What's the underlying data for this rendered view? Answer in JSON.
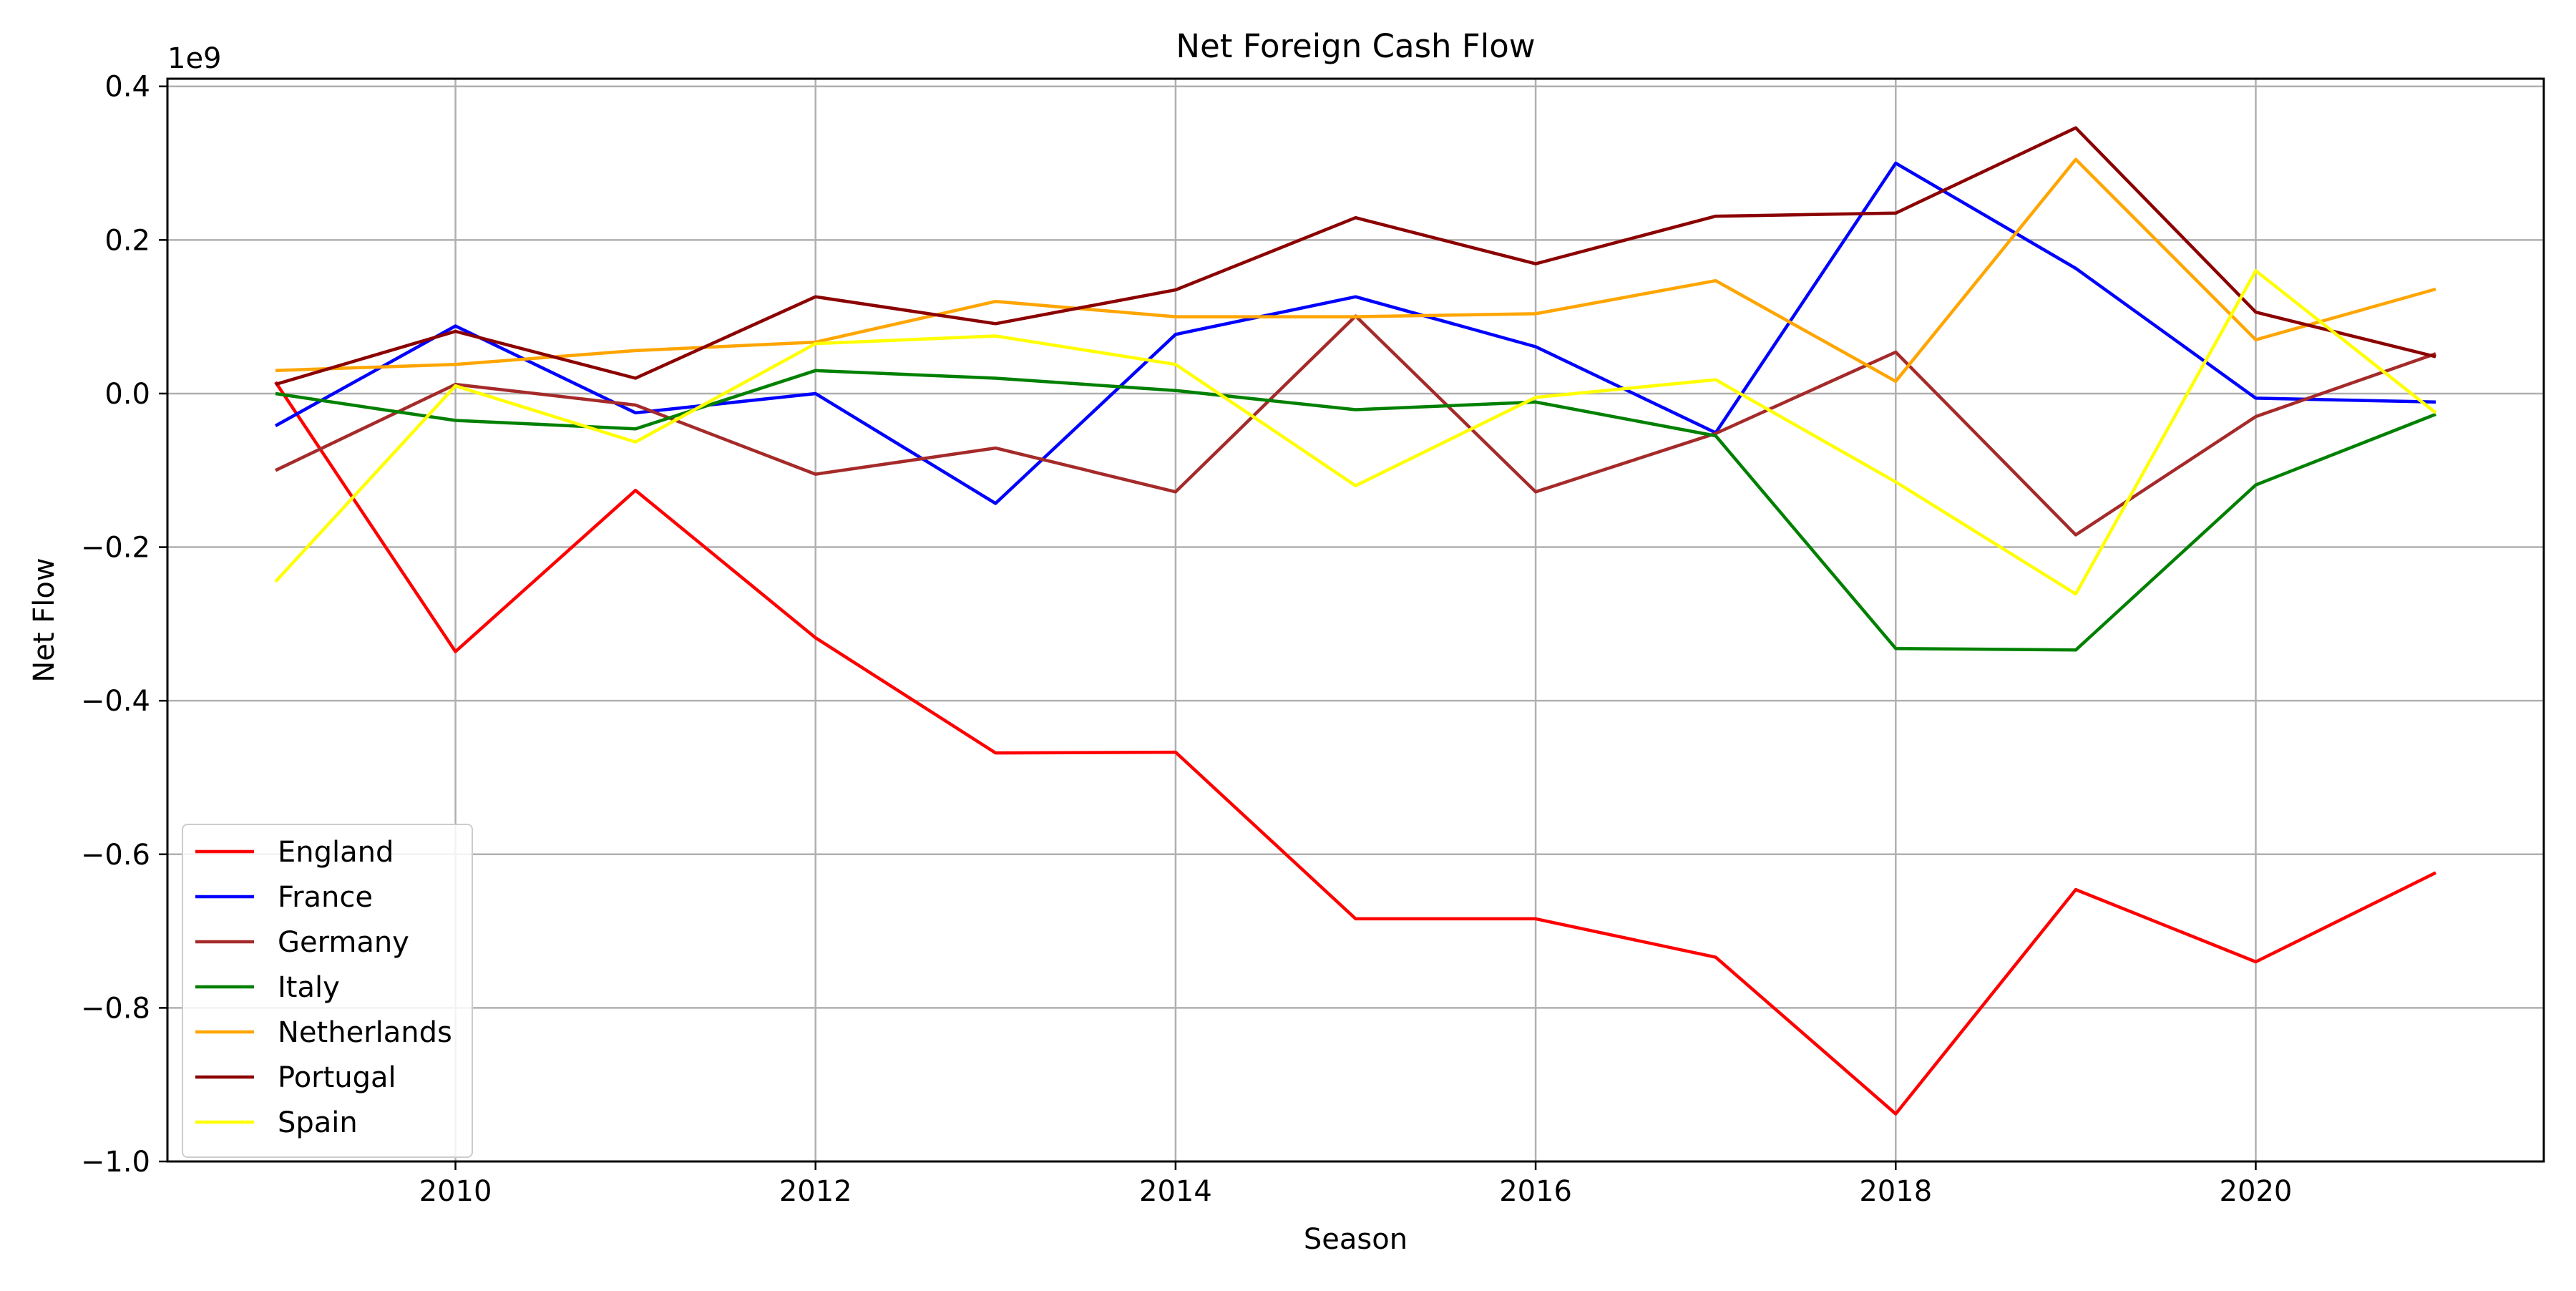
{
  "chart_data": {
    "type": "line",
    "title": "Net Foreign Cash Flow",
    "xlabel": "Season",
    "ylabel": "Net Flow",
    "y_offset_text": "1e9",
    "x": [
      2009,
      2010,
      2011,
      2012,
      2013,
      2014,
      2015,
      2016,
      2017,
      2018,
      2019,
      2020,
      2021
    ],
    "xlim": [
      2008.4,
      2021.6
    ],
    "ylim": [
      -1.0,
      0.41
    ],
    "xticks": [
      2010,
      2012,
      2014,
      2016,
      2018,
      2020
    ],
    "xtick_labels": [
      "2010",
      "2012",
      "2014",
      "2016",
      "2018",
      "2020"
    ],
    "yticks": [
      0.4,
      0.2,
      0.0,
      -0.2,
      -0.4,
      -0.6,
      -0.8,
      -1.0
    ],
    "ytick_labels": [
      "0.4",
      "0.2",
      "0.0",
      "−0.2",
      "−0.4",
      "−0.6",
      "−0.8",
      "−1.0"
    ],
    "grid": true,
    "legend_position": "lower-left",
    "series": [
      {
        "name": "England",
        "color": "#ff0000",
        "values": [
          0.015,
          -0.336,
          -0.126,
          -0.318,
          -0.468,
          -0.467,
          -0.684,
          -0.684,
          -0.734,
          -0.938,
          -0.646,
          -0.74,
          -0.624
        ]
      },
      {
        "name": "France",
        "color": "#0000ff",
        "values": [
          -0.042,
          0.088,
          -0.025,
          0.0,
          -0.143,
          0.077,
          0.126,
          0.061,
          -0.051,
          0.3,
          0.163,
          -0.006,
          -0.011
        ]
      },
      {
        "name": "Germany",
        "color": "#a52a2a",
        "values": [
          -0.1,
          0.012,
          -0.015,
          -0.105,
          -0.071,
          -0.128,
          0.101,
          -0.128,
          -0.052,
          0.054,
          -0.184,
          -0.03,
          0.052
        ]
      },
      {
        "name": "Italy",
        "color": "#008000",
        "values": [
          0.0,
          -0.035,
          -0.046,
          0.03,
          0.02,
          0.004,
          -0.021,
          -0.011,
          -0.055,
          -0.332,
          -0.334,
          -0.119,
          -0.027
        ]
      },
      {
        "name": "Netherlands",
        "color": "#ffa500",
        "values": [
          0.03,
          0.038,
          0.056,
          0.067,
          0.12,
          0.1,
          0.1,
          0.104,
          0.147,
          0.016,
          0.305,
          0.07,
          0.136
        ]
      },
      {
        "name": "Portugal",
        "color": "#8b0000",
        "values": [
          0.012,
          0.081,
          0.02,
          0.126,
          0.091,
          0.135,
          0.229,
          0.169,
          0.231,
          0.235,
          0.346,
          0.106,
          0.048
        ]
      },
      {
        "name": "Spain",
        "color": "#ffff00",
        "values": [
          -0.245,
          0.01,
          -0.063,
          0.065,
          0.075,
          0.038,
          -0.12,
          -0.005,
          0.018,
          -0.115,
          -0.261,
          0.16,
          -0.025
        ]
      }
    ]
  }
}
